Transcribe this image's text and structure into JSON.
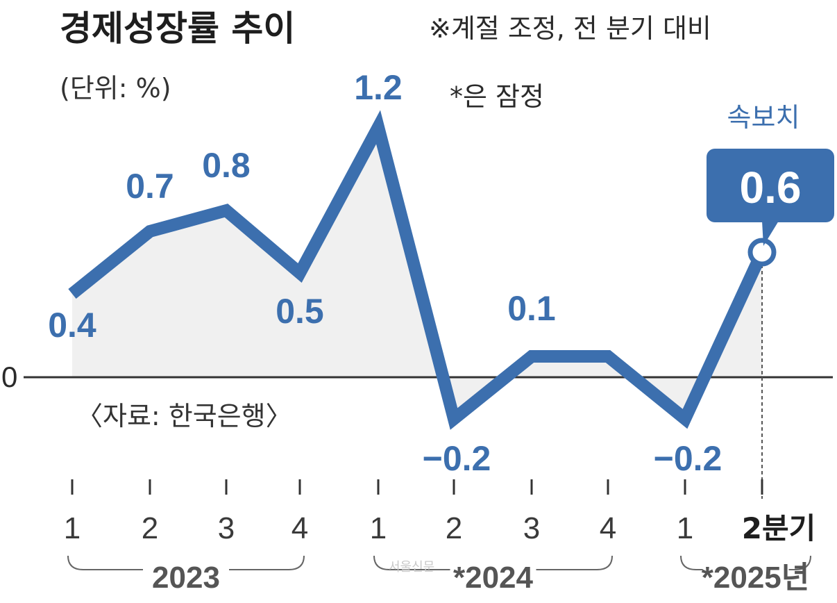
{
  "header": {
    "title": "경제성장률 추이",
    "note": "※계절 조정, 전 분기 대비",
    "unit": "(단위: %)",
    "provisional_note": "*은 잠정"
  },
  "source": "〈자료: 한국은행〉",
  "watermark": "서울신문",
  "callout": {
    "title": "속보치",
    "value": "0.6"
  },
  "chart_data": {
    "type": "line",
    "title": "경제성장률 추이",
    "ylabel": "%",
    "baseline": 0,
    "baseline_label": "0",
    "categories": [
      "2023 1",
      "2023 2",
      "2023 3",
      "2023 4",
      "2024 1",
      "2024 2",
      "2024 3",
      "2024 4",
      "2025 1",
      "2025 2분기"
    ],
    "x_tick_labels": [
      "1",
      "2",
      "3",
      "4",
      "1",
      "2",
      "3",
      "4",
      "1",
      "2분기"
    ],
    "values": [
      0.4,
      0.7,
      0.8,
      0.5,
      1.2,
      -0.2,
      0.1,
      0.1,
      -0.2,
      0.6
    ],
    "data_labels": [
      "0.4",
      "0.7",
      "0.8",
      "0.5",
      "1.2",
      "-0.2",
      "0.1",
      "",
      "-0.2",
      ""
    ],
    "year_groups": [
      {
        "label": "2023",
        "start": 0,
        "end": 3
      },
      {
        "label": "*2024",
        "start": 4,
        "end": 7
      },
      {
        "label": "*2025년",
        "start": 8,
        "end": 9
      }
    ],
    "colors": {
      "line": "#3c6fae",
      "area": "#f0f0f0",
      "axis": "#333333"
    }
  }
}
